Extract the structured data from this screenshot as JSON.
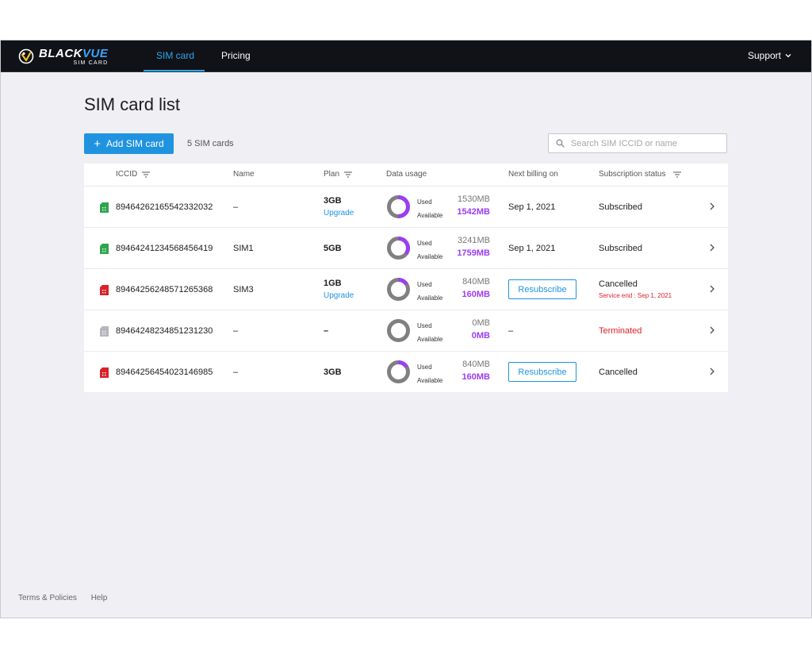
{
  "nav": {
    "brand_main": "BLACK",
    "brand_accent": "VUE",
    "brand_sub": "SIM CARD",
    "tabs": [
      {
        "label": "SIM card",
        "active": true
      },
      {
        "label": "Pricing",
        "active": false
      }
    ],
    "support_label": "Support"
  },
  "page": {
    "title": "SIM card list",
    "add_button": "Add SIM card",
    "count": "5 SIM cards",
    "search_placeholder": "Search SIM ICCID or name"
  },
  "table": {
    "headers": {
      "iccid": "ICCID",
      "name": "Name",
      "plan": "Plan",
      "usage": "Data usage",
      "billing": "Next billing on",
      "status": "Subscription status"
    },
    "used_label": "Used",
    "available_label": "Available",
    "upgrade_label": "Upgrade",
    "resubscribe_label": "Resubscribe",
    "rows": [
      {
        "iccid": "89464262165542332032",
        "name": "–",
        "plan": "3GB",
        "upgrade": true,
        "used": "1530MB",
        "available": "1542MB",
        "used_fraction": 0.5,
        "billing": "Sep 1, 2021",
        "resubscribe": false,
        "status": "Subscribed",
        "status_kind": "subscribed",
        "service_end": "",
        "sim_color": "#2ea44f"
      },
      {
        "iccid": "89464241234568456419",
        "name": "SIM1",
        "plan": "5GB",
        "upgrade": false,
        "used": "3241MB",
        "available": "1759MB",
        "used_fraction": 0.65,
        "billing": "Sep 1, 2021",
        "resubscribe": false,
        "status": "Subscribed",
        "status_kind": "subscribed",
        "service_end": "",
        "sim_color": "#2ea44f"
      },
      {
        "iccid": "89464256248571265368",
        "name": "SIM3",
        "plan": "1GB",
        "upgrade": true,
        "used": "840MB",
        "available": "160MB",
        "used_fraction": 0.84,
        "billing": "",
        "resubscribe": true,
        "status": "Cancelled",
        "status_kind": "cancelled",
        "service_end": "Service end : Sep 1, 2021",
        "sim_color": "#d8232a"
      },
      {
        "iccid": "89464248234851231230",
        "name": "–",
        "plan": "–",
        "upgrade": false,
        "used": "0MB",
        "available": "0MB",
        "used_fraction": 1.0,
        "billing": "–",
        "resubscribe": false,
        "status": "Terminated",
        "status_kind": "terminated",
        "service_end": "",
        "sim_color": "#b5b7bc"
      },
      {
        "iccid": "89464256454023146985",
        "name": "–",
        "plan": "3GB",
        "upgrade": false,
        "used": "840MB",
        "available": "160MB",
        "used_fraction": 0.84,
        "billing": "",
        "resubscribe": true,
        "status": "Cancelled",
        "status_kind": "cancelled",
        "service_end": "",
        "sim_color": "#d8232a"
      }
    ]
  },
  "footer": {
    "terms": "Terms & Policies",
    "help": "Help"
  },
  "colors": {
    "accent": "#1f93e0",
    "available": "#9b3df5",
    "used_ring": "#808080",
    "alert": "#d8232a"
  }
}
